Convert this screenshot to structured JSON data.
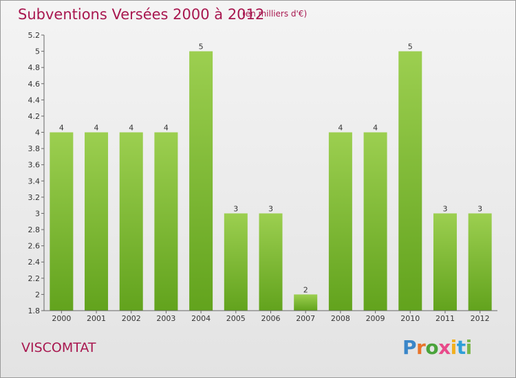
{
  "header": {
    "title": "Subventions Versées 2000 à 2012",
    "subtitle": "(en milliers d'€)"
  },
  "footer": {
    "place": "VISCOMTAT",
    "logo_text": "Proxiti",
    "logo_colors": [
      "#3a86c8",
      "#e8742a",
      "#4aa33b",
      "#e84a8a",
      "#f2b01e",
      "#2f9fd8",
      "#7ab648"
    ]
  },
  "chart_data": {
    "type": "bar",
    "categories": [
      "2000",
      "2001",
      "2002",
      "2003",
      "2004",
      "2005",
      "2006",
      "2007",
      "2008",
      "2009",
      "2010",
      "2011",
      "2012"
    ],
    "values": [
      4,
      4,
      4,
      4,
      5,
      3,
      3,
      2,
      4,
      4,
      5,
      3,
      3
    ],
    "display_values": [
      4,
      4,
      4,
      4,
      5,
      3,
      3,
      2,
      4,
      4,
      5,
      3,
      3
    ],
    "ylim": [
      1.8,
      5.2
    ],
    "y_ticks": [
      "1.8",
      "2",
      "2.2",
      "2.4",
      "2.6",
      "2.8",
      "3",
      "3.2",
      "3.4",
      "3.6",
      "3.8",
      "4",
      "4.2",
      "4.4",
      "4.6",
      "4.8",
      "5",
      "5.2"
    ],
    "xlabel": "",
    "ylabel": "",
    "grid": false,
    "bar_color_top": "#9ccf50",
    "bar_color_bottom": "#62a31d"
  }
}
